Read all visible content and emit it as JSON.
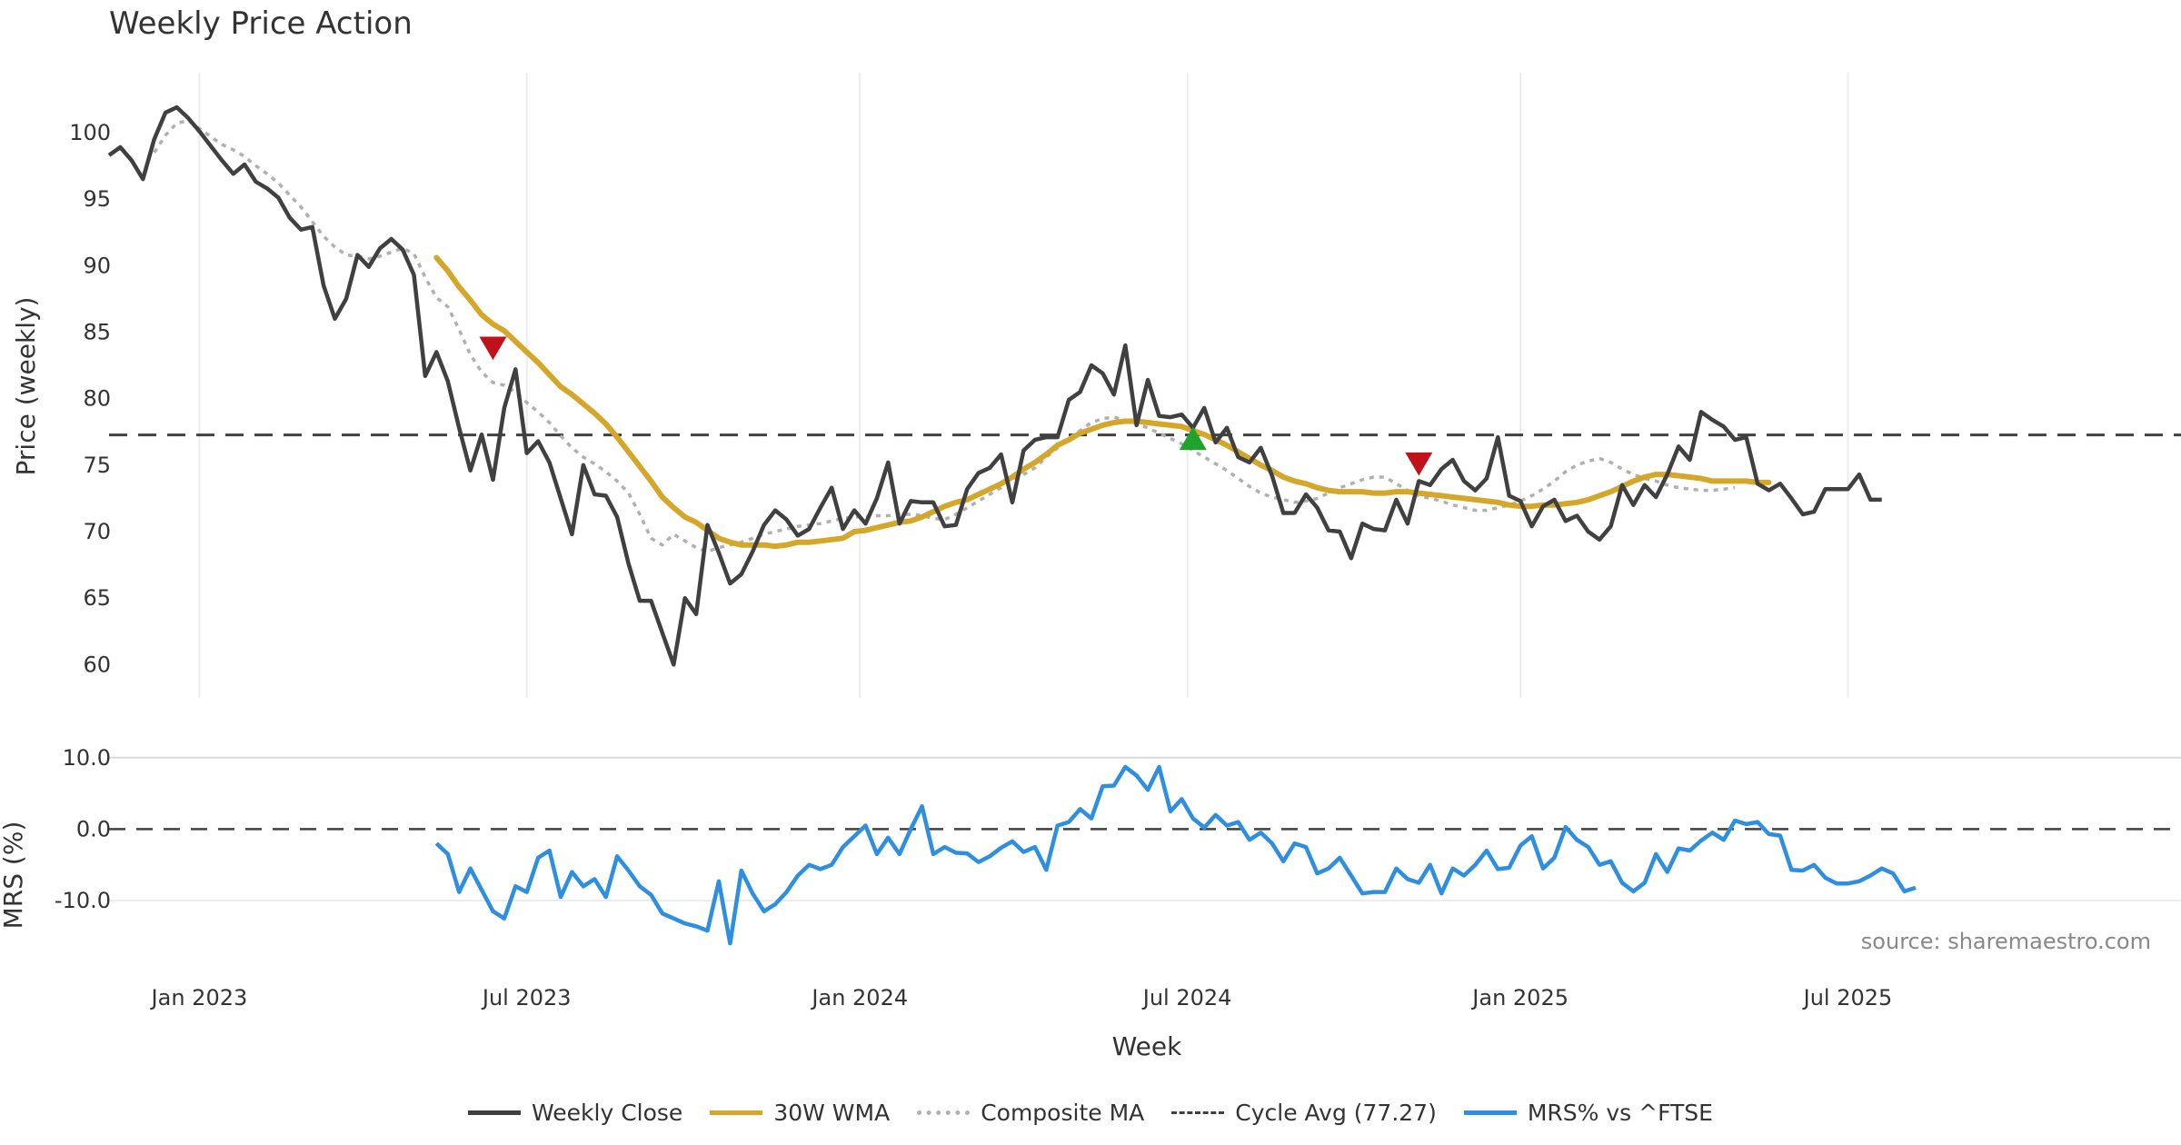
{
  "chart_data": {
    "type": "line",
    "title": "Weekly Price Action",
    "xlabel": "Week",
    "panels": {
      "price": {
        "ylabel": "Price (weekly)",
        "ylim": [
          57.5,
          104.5
        ],
        "yticks": [
          60,
          65,
          70,
          75,
          80,
          85,
          90,
          95,
          100
        ]
      },
      "mrs": {
        "ylabel": "MRS (%)",
        "ylim": [
          -17.5,
          11.5
        ],
        "yticks": [
          10.0,
          0.0,
          -10.0
        ],
        "ytick_labels": [
          "10.0",
          "0.0",
          "-10.0"
        ]
      }
    },
    "x_range_weeks": [
      0,
      183.5
    ],
    "x_ticks": [
      {
        "label": "Jan 2023",
        "week": 8
      },
      {
        "label": "Jul 2023",
        "week": 37
      },
      {
        "label": "Jan 2024",
        "week": 66.5
      },
      {
        "label": "Jul 2024",
        "week": 95.5
      },
      {
        "label": "Jan 2025",
        "week": 125
      },
      {
        "label": "Jul 2025",
        "week": 154
      }
    ],
    "series": {
      "weekly_close": {
        "name": "Weekly Close",
        "color": "#404040",
        "start_week": 0,
        "values": [
          98.3,
          98.9,
          97.9,
          96.5,
          99.5,
          101.5,
          101.9,
          101.1,
          100.1,
          99.0,
          97.9,
          96.9,
          97.6,
          96.3,
          95.8,
          95.1,
          93.6,
          92.7,
          92.9,
          88.5,
          86.0,
          87.5,
          90.8,
          89.9,
          91.3,
          92.0,
          91.2,
          89.3,
          81.7,
          83.5,
          81.3,
          77.8,
          74.6,
          77.3,
          73.9,
          79.3,
          82.2,
          75.9,
          76.8,
          75.2,
          72.5,
          69.8,
          75.0,
          72.8,
          72.7,
          71.1,
          67.6,
          64.8,
          64.8,
          62.4,
          60.0,
          65.0,
          63.8,
          70.5,
          68.4,
          66.1,
          66.8,
          68.5,
          70.5,
          71.6,
          70.9,
          69.7,
          70.2,
          71.8,
          73.3,
          70.2,
          71.6,
          70.6,
          72.5,
          75.2,
          70.6,
          72.3,
          72.2,
          72.2,
          70.4,
          70.5,
          73.2,
          74.4,
          74.8,
          75.8,
          72.2,
          76.1,
          76.9,
          77.1,
          77.1,
          79.9,
          80.5,
          82.5,
          81.9,
          80.3,
          84.0,
          78.0,
          81.4,
          78.7,
          78.6,
          78.8,
          77.8,
          79.3,
          76.7,
          77.8,
          75.6,
          75.2,
          76.3,
          74.2,
          71.4,
          71.4,
          72.8,
          71.8,
          70.1,
          70.0,
          68.0,
          70.6,
          70.2,
          70.1,
          72.4,
          70.6,
          73.8,
          73.5,
          74.7,
          75.4,
          73.8,
          73.1,
          74.0,
          77.1,
          72.7,
          72.3,
          70.4,
          71.9,
          72.4,
          70.8,
          71.2,
          70.0,
          69.4,
          70.4,
          73.5,
          72.0,
          73.5,
          72.6,
          74.3,
          76.4,
          75.4,
          79.0,
          78.4,
          77.9,
          76.9,
          77.1,
          73.6,
          73.1,
          73.6,
          72.5,
          71.3,
          71.5,
          73.2,
          73.2,
          73.2,
          74.3,
          72.4,
          72.4
        ]
      },
      "wma_30w": {
        "name": "30W WMA",
        "color": "#D4A62A",
        "start_week": 29,
        "values": [
          90.6,
          89.6,
          88.4,
          87.4,
          86.3,
          85.6,
          85.1,
          84.3,
          83.5,
          82.7,
          81.8,
          80.9,
          80.3,
          79.6,
          78.9,
          78.1,
          77.1,
          76.0,
          74.9,
          73.8,
          72.6,
          71.8,
          71.1,
          70.7,
          70.1,
          69.5,
          69.2,
          69.0,
          69.0,
          69.0,
          68.9,
          69.0,
          69.2,
          69.2,
          69.3,
          69.4,
          69.5,
          70.0,
          70.1,
          70.3,
          70.5,
          70.7,
          70.8,
          71.1,
          71.5,
          71.9,
          72.2,
          72.4,
          72.8,
          73.2,
          73.6,
          74.1,
          74.7,
          75.2,
          75.8,
          76.5,
          76.9,
          77.4,
          77.7,
          78.0,
          78.2,
          78.3,
          78.3,
          78.2,
          78.1,
          78.0,
          77.9,
          77.6,
          77.3,
          76.9,
          76.5,
          76.0,
          75.5,
          75.0,
          74.6,
          74.1,
          73.8,
          73.6,
          73.3,
          73.1,
          73.0,
          73.0,
          73.0,
          72.9,
          72.9,
          73.0,
          73.0,
          72.9,
          72.8,
          72.7,
          72.6,
          72.5,
          72.4,
          72.3,
          72.2,
          72.0,
          71.9,
          71.9,
          72.0,
          72.0,
          72.1,
          72.2,
          72.4,
          72.7,
          73.0,
          73.4,
          73.8,
          74.1,
          74.3,
          74.3,
          74.2,
          74.1,
          74.0,
          73.8,
          73.8,
          73.8,
          73.8,
          73.7,
          73.7
        ]
      },
      "composite_ma": {
        "name": "Composite MA",
        "color": "#B0B0B0",
        "start_week": 4,
        "values": [
          98.5,
          99.8,
          100.7,
          100.9,
          100.3,
          99.7,
          99.1,
          98.7,
          98.2,
          97.5,
          96.9,
          96.2,
          95.3,
          94.4,
          93.3,
          92.2,
          91.4,
          90.8,
          90.7,
          90.5,
          90.7,
          91.0,
          91.3,
          90.9,
          89.1,
          87.6,
          86.9,
          85.2,
          83.3,
          82.0,
          81.2,
          81.0,
          80.5,
          79.7,
          79.0,
          78.2,
          77.2,
          76.3,
          75.6,
          75.1,
          74.5,
          73.8,
          72.9,
          71.3,
          69.5,
          69.0,
          69.8,
          69.3,
          68.8,
          68.5,
          68.8,
          69.0,
          69.2,
          69.5,
          69.8,
          70.0,
          70.2,
          70.4,
          70.5,
          70.6,
          70.8,
          71.0,
          71.1,
          71.1,
          71.2,
          71.2,
          71.3,
          71.3,
          71.2,
          71.0,
          70.9,
          71.3,
          71.8,
          72.3,
          72.8,
          73.3,
          73.9,
          74.3,
          74.8,
          75.6,
          76.3,
          77.0,
          77.6,
          78.2,
          78.5,
          78.6,
          78.4,
          78.1,
          77.8,
          77.4,
          77.0,
          76.6,
          76.1,
          75.6,
          75.1,
          74.6,
          74.0,
          73.4,
          72.9,
          72.6,
          72.4,
          72.2,
          72.3,
          72.5,
          72.9,
          73.3,
          73.6,
          73.9,
          74.1,
          74.1,
          73.6,
          73.1,
          72.7,
          72.5,
          72.3,
          72.0,
          71.8,
          71.6,
          71.6,
          71.8,
          72.0,
          72.3,
          72.7,
          73.2,
          73.8,
          74.5,
          75.0,
          75.3,
          75.5,
          75.2,
          74.7,
          74.3,
          74.0,
          73.8,
          73.5,
          73.3,
          73.2,
          73.1,
          73.1,
          73.2,
          73.3
        ]
      },
      "cycle_avg": {
        "name": "Cycle Avg (77.27)",
        "color": "#404040",
        "value": 77.27
      },
      "mrs": {
        "name": "MRS% vs ^FTSE",
        "color": "#2E8EE0",
        "start_week": 29,
        "values": [
          -2.0,
          -3.5,
          -8.8,
          -5.5,
          -8.5,
          -11.5,
          -12.5,
          -8.0,
          -8.8,
          -4.0,
          -3.0,
          -9.5,
          -6.0,
          -8.0,
          -7.0,
          -9.5,
          -3.8,
          -5.8,
          -8.0,
          -9.2,
          -11.8,
          -12.5,
          -13.2,
          -13.6,
          -14.2,
          -7.3,
          -16.0,
          -5.8,
          -9.0,
          -11.5,
          -10.5,
          -8.8,
          -6.5,
          -5.0,
          -5.6,
          -5.0,
          -2.5,
          -1.0,
          0.5,
          -3.5,
          -1.2,
          -3.5,
          0.0,
          3.2,
          -3.5,
          -2.5,
          -3.3,
          -3.4,
          -4.6,
          -3.8,
          -2.6,
          -1.7,
          -3.2,
          -2.5,
          -5.7,
          0.5,
          1.0,
          2.8,
          1.5,
          6.0,
          6.1,
          8.7,
          7.5,
          5.5,
          8.7,
          2.5,
          4.2,
          1.5,
          0.2,
          2.0,
          0.5,
          1.0,
          -1.5,
          -0.5,
          -2.0,
          -4.5,
          -2.0,
          -2.5,
          -6.2,
          -5.5,
          -4.0,
          -6.5,
          -9.0,
          -8.8,
          -8.8,
          -5.5,
          -7.0,
          -7.5,
          -5.0,
          -9.0,
          -5.5,
          -6.5,
          -5.0,
          -3.0,
          -5.6,
          -5.4,
          -2.3,
          -1.0,
          -5.5,
          -4.0,
          0.3,
          -1.5,
          -2.5,
          -5.0,
          -4.5,
          -7.5,
          -8.7,
          -7.5,
          -3.5,
          -6.0,
          -2.7,
          -3.0,
          -1.6,
          -0.5,
          -1.5,
          1.2,
          0.7,
          1.0,
          -0.7,
          -0.9,
          -5.7,
          -5.8,
          -5.0,
          -6.8,
          -7.6,
          -7.6,
          -7.3,
          -6.5,
          -5.5,
          -6.2,
          -8.7,
          -8.2
        ]
      },
      "signals": [
        {
          "type": "sell",
          "week": 34,
          "price": 84.0,
          "color": "#C0121B"
        },
        {
          "type": "buy",
          "week": 96,
          "price": 76.8,
          "color": "#1FA32A"
        },
        {
          "type": "sell",
          "week": 116,
          "price": 75.3,
          "color": "#C0121B"
        }
      ]
    },
    "source_note": "source: sharemaestro.com",
    "legend": [
      {
        "label": "Weekly Close",
        "style": "solid",
        "color": "#404040"
      },
      {
        "label": "30W WMA",
        "style": "solid",
        "color": "#D4A62A"
      },
      {
        "label": "Composite MA",
        "style": "dotted",
        "color": "#B0B0B0"
      },
      {
        "label": "Cycle Avg (77.27)",
        "style": "dashed",
        "color": "#404040"
      },
      {
        "label": "MRS% vs ^FTSE",
        "style": "solid",
        "color": "#2E8EE0"
      }
    ]
  }
}
